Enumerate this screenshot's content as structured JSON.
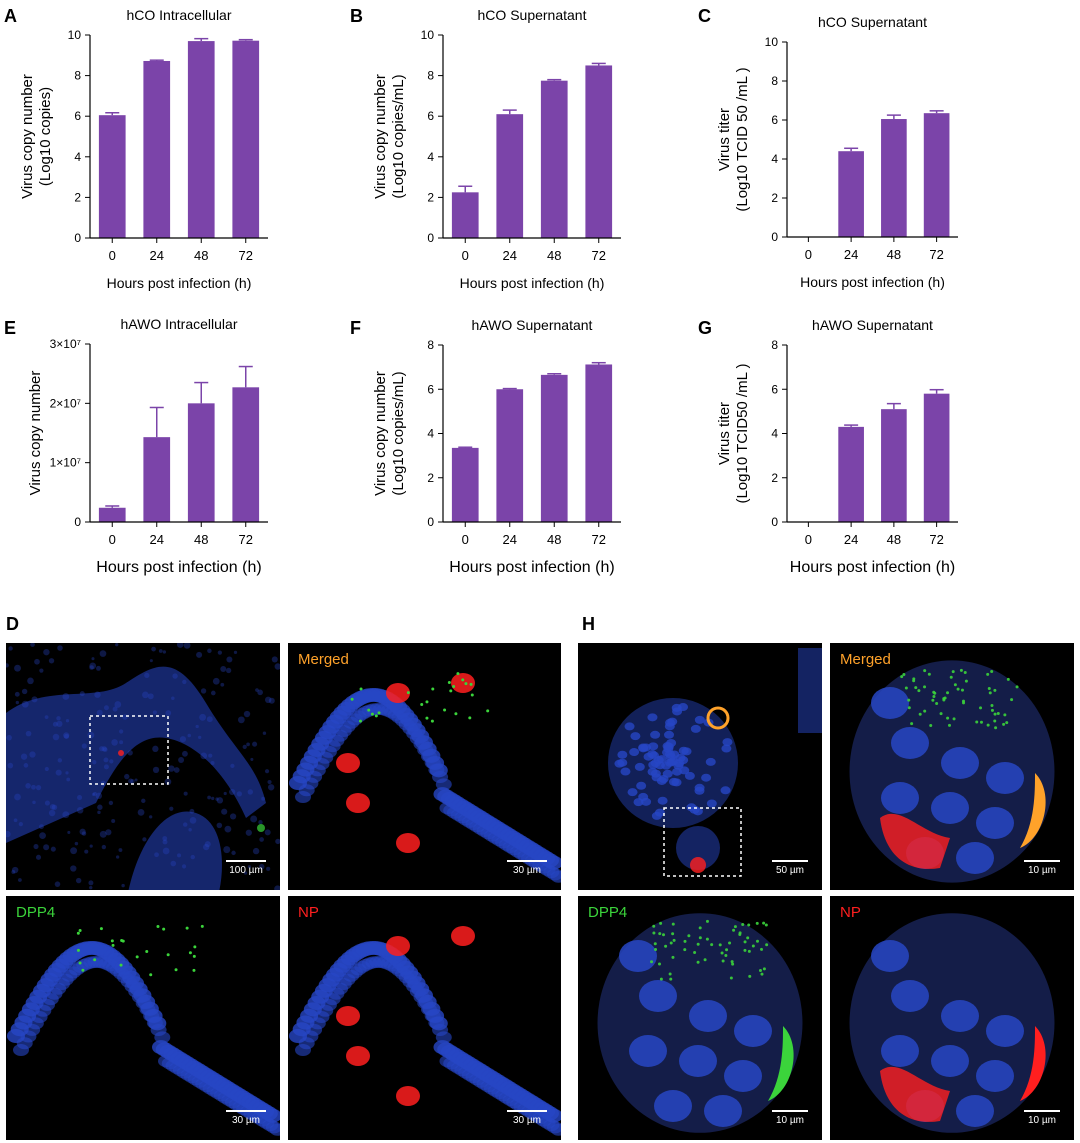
{
  "colors": {
    "bar": "#7b44a9",
    "dapi": "#2746c4",
    "dpp4": "#3bd43b",
    "np": "#ff1f1f",
    "merged": "#ffa22a"
  },
  "chart_data": [
    {
      "letter": "A",
      "type": "bar",
      "title": "hCO Intracellular",
      "ylabel_lines": [
        "Virus copy number",
        "(Log10 copies)"
      ],
      "xlabel": "Hours post infection (h)",
      "categories": [
        "0",
        "24",
        "48",
        "72"
      ],
      "values": [
        6.05,
        8.72,
        9.7,
        9.72
      ],
      "errors": [
        0.12,
        0.04,
        0.12,
        0.05
      ],
      "ylim": [
        0,
        10
      ],
      "yticks": [
        "0",
        "2",
        "4",
        "6",
        "8",
        "10"
      ]
    },
    {
      "letter": "B",
      "type": "bar",
      "title": "hCO Supernatant",
      "ylabel_lines": [
        "Virus copy number",
        "(Log10 copies/mL)"
      ],
      "xlabel": "Hours post infection (h)",
      "categories": [
        "0",
        "24",
        "48",
        "72"
      ],
      "values": [
        2.25,
        6.1,
        7.75,
        8.5
      ],
      "errors": [
        0.3,
        0.2,
        0.05,
        0.1
      ],
      "ylim": [
        0,
        10
      ],
      "yticks": [
        "0",
        "2",
        "4",
        "6",
        "8",
        "10"
      ]
    },
    {
      "letter": "C",
      "type": "bar",
      "title": "hCO Supernatant",
      "ylabel_lines": [
        "Virus titer",
        "(Log10 TCID 50 /mL )"
      ],
      "xlabel": "Hours post infection (h)",
      "categories": [
        "0",
        "24",
        "48",
        "72"
      ],
      "values": [
        0,
        4.4,
        6.05,
        6.35
      ],
      "errors": [
        0,
        0.15,
        0.2,
        0.12
      ],
      "ylim": [
        0,
        10
      ],
      "yticks": [
        "0",
        "2",
        "4",
        "6",
        "8",
        "10"
      ]
    },
    {
      "letter": "E",
      "type": "bar",
      "title": "hAWO Intracellular",
      "ylabel_lines": [
        "Virus copy number"
      ],
      "xlabel": "Hours post infection (h)",
      "categories": [
        "0",
        "24",
        "48",
        "72"
      ],
      "values": [
        2400000.0,
        14300000.0,
        20000000.0,
        22700000.0
      ],
      "errors": [
        300000.0,
        5000000.0,
        3500000.0,
        3500000.0
      ],
      "ylim": [
        0,
        30000000
      ],
      "yticks": [
        "0",
        "1×10⁷",
        "2×10⁷",
        "3×10⁷"
      ]
    },
    {
      "letter": "F",
      "type": "bar",
      "title": "hAWO Supernatant",
      "ylabel_lines": [
        "Virus copy number",
        "(Log10 copies/mL)"
      ],
      "xlabel": "Hours post infection (h)",
      "categories": [
        "0",
        "24",
        "48",
        "72"
      ],
      "values": [
        3.35,
        6.0,
        6.65,
        7.12
      ],
      "errors": [
        0.03,
        0.03,
        0.05,
        0.08
      ],
      "ylim": [
        0,
        8
      ],
      "yticks": [
        "0",
        "2",
        "4",
        "6",
        "8"
      ]
    },
    {
      "letter": "G",
      "type": "bar",
      "title": "hAWO Supernatant",
      "ylabel_lines": [
        "Virus titer",
        "(Log10 TCID50 /mL )"
      ],
      "xlabel": "Hours post infection (h)",
      "categories": [
        "0",
        "24",
        "48",
        "72"
      ],
      "values": [
        0,
        4.3,
        5.1,
        5.8
      ],
      "errors": [
        0,
        0.08,
        0.25,
        0.18
      ],
      "ylim": [
        0,
        8
      ],
      "yticks": [
        "0",
        "2",
        "4",
        "6",
        "8"
      ]
    }
  ],
  "micrographs": {
    "D": {
      "letter": "D",
      "panels": [
        {
          "label": "",
          "scale": "100 µm",
          "channels": [
            "dapi",
            "dpp4",
            "np"
          ],
          "view": "overview"
        },
        {
          "label": "Merged",
          "scale": "30 µm",
          "channels": [
            "dapi",
            "dpp4",
            "np"
          ],
          "view": "zoom"
        },
        {
          "label": "DPP4",
          "scale": "30 µm",
          "channels": [
            "dapi",
            "dpp4"
          ],
          "view": "zoom"
        },
        {
          "label": "NP",
          "scale": "30 µm",
          "channels": [
            "dapi",
            "np"
          ],
          "view": "zoom"
        }
      ]
    },
    "H": {
      "letter": "H",
      "panels": [
        {
          "label": "",
          "scale": "50 µm",
          "channels": [
            "dapi",
            "dpp4",
            "np"
          ],
          "view": "overview"
        },
        {
          "label": "Merged",
          "scale": "10 µm",
          "channels": [
            "dapi",
            "dpp4",
            "np"
          ],
          "view": "zoom"
        },
        {
          "label": "DPP4",
          "scale": "10 µm",
          "channels": [
            "dapi",
            "dpp4"
          ],
          "view": "zoom"
        },
        {
          "label": "NP",
          "scale": "10 µm",
          "channels": [
            "dapi",
            "np"
          ],
          "view": "zoom"
        }
      ]
    }
  }
}
